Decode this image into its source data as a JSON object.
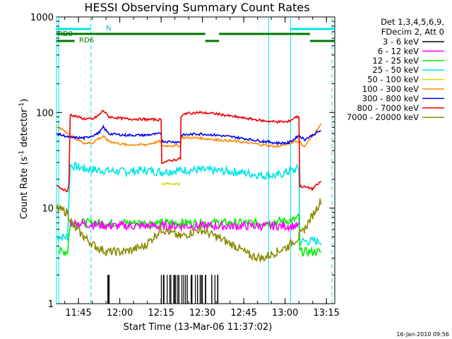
{
  "chart_data": {
    "type": "line",
    "title": "HESSI Observing Summary Count Rates",
    "xlabel": "Start Time (13-Mar-06 11:37:02)",
    "ylabel_main": "Count Rate (s",
    "ylabel_sup1": "-1",
    "ylabel_mid": " detector",
    "ylabel_sup2": "-1",
    "ylabel_end": ")",
    "y_scale": "log",
    "ylim": [
      1,
      1000
    ],
    "xlim": [
      "11:37:02",
      "13:18:00"
    ],
    "x_ticks": [
      "11:45",
      "12:00",
      "12:15",
      "12:30",
      "12:45",
      "13:00",
      "13:15"
    ],
    "y_ticks": [
      "1",
      "10",
      "100",
      "1000"
    ],
    "legend_header": [
      "Det 1,3,4,5,6,9,",
      "FDecim 2, Att 0"
    ],
    "legend_placement": "right",
    "timestamp": "16-Jan-2010 09:56",
    "annotations": {
      "rd0": "RD0",
      "rd6": "RD6",
      "n": "N"
    },
    "night_minutes": [
      [
        0,
        0.8
      ],
      [
        77,
        85
      ]
    ],
    "night_dash_minutes": [
      12.5,
      100
    ],
    "rd0_segments": [
      [
        0,
        12.5
      ],
      [
        85,
        101
      ]
    ],
    "rd0_flag_segments": [
      [
        0,
        54
      ],
      [
        59,
        92
      ]
    ],
    "rd6_segments": [
      [
        0,
        4
      ]
    ],
    "rd6_flag_segments": [
      [
        54,
        59
      ],
      [
        92,
        101
      ]
    ],
    "gap_minutes": [
      [
        0,
        4.5
      ],
      [
        52.5,
        56.5
      ],
      [
        88,
        90
      ]
    ],
    "series": [
      {
        "name": "3 - 6 keV",
        "color": "#000000",
        "values_note": "sporadic 1-2"
      },
      {
        "name": "6 - 12 keV",
        "color": "#ff00ff"
      },
      {
        "name": "12 - 25 keV",
        "color": "#00ee00"
      },
      {
        "name": "25 - 50 keV",
        "color": "#00e5e5"
      },
      {
        "name": "50 - 100 keV",
        "color": "#d8d800"
      },
      {
        "name": "100 - 300 keV",
        "color": "#ff8800"
      },
      {
        "name": "300 - 800 keV",
        "color": "#0000ee"
      },
      {
        "name": "800 - 7000 keV",
        "color": "#ee0000"
      },
      {
        "name": "7000 - 20000 keV",
        "color": "#8b8b00"
      }
    ],
    "curves": {
      "red": [
        [
          0,
          17
        ],
        [
          4,
          15
        ],
        [
          4.5,
          18
        ],
        [
          5,
          95
        ],
        [
          10,
          86
        ],
        [
          13,
          85
        ],
        [
          15,
          92
        ],
        [
          17,
          105
        ],
        [
          19,
          90
        ],
        [
          25,
          86
        ],
        [
          32,
          85
        ],
        [
          38,
          84
        ],
        [
          38.2,
          30
        ],
        [
          45,
          33
        ],
        [
          45.2,
          90
        ],
        [
          47,
          98
        ],
        [
          52,
          100
        ],
        [
          58,
          97
        ],
        [
          65,
          90
        ],
        [
          75,
          82
        ],
        [
          80,
          80
        ],
        [
          84,
          80
        ],
        [
          87,
          90
        ],
        [
          88,
          90
        ],
        [
          88.3,
          17
        ],
        [
          93,
          16
        ],
        [
          96,
          19
        ]
      ],
      "blue": [
        [
          0,
          60
        ],
        [
          4,
          56
        ],
        [
          5,
          55
        ],
        [
          10,
          54
        ],
        [
          15,
          60
        ],
        [
          17,
          70
        ],
        [
          19,
          60
        ],
        [
          25,
          58
        ],
        [
          32,
          58
        ],
        [
          38,
          60
        ],
        [
          38.2,
          50
        ],
        [
          45,
          49
        ],
        [
          45.2,
          58
        ],
        [
          52,
          60
        ],
        [
          58,
          58
        ],
        [
          65,
          55
        ],
        [
          75,
          50
        ],
        [
          80,
          48
        ],
        [
          84,
          48
        ],
        [
          86,
          52
        ],
        [
          88,
          58
        ],
        [
          90,
          52
        ],
        [
          96,
          65
        ]
      ],
      "orange": [
        [
          0,
          70
        ],
        [
          3,
          65
        ],
        [
          5,
          57
        ],
        [
          10,
          48
        ],
        [
          13,
          48
        ],
        [
          15,
          53
        ],
        [
          17,
          56
        ],
        [
          19,
          50
        ],
        [
          25,
          46
        ],
        [
          32,
          46
        ],
        [
          38,
          50
        ],
        [
          38.2,
          45
        ],
        [
          45,
          45
        ],
        [
          45.2,
          55
        ],
        [
          52,
          54
        ],
        [
          58,
          52
        ],
        [
          65,
          50
        ],
        [
          75,
          46
        ],
        [
          80,
          44
        ],
        [
          84,
          47
        ],
        [
          86,
          50
        ],
        [
          88,
          50
        ],
        [
          90,
          44
        ],
        [
          96,
          75
        ]
      ],
      "cyan": [
        [
          0,
          5
        ],
        [
          4,
          5
        ],
        [
          5,
          28
        ],
        [
          10,
          26
        ],
        [
          15,
          25
        ],
        [
          25,
          24
        ],
        [
          32,
          25
        ],
        [
          38,
          24
        ],
        [
          38.2,
          24
        ],
        [
          45,
          25
        ],
        [
          52,
          25
        ],
        [
          65,
          24
        ],
        [
          75,
          22
        ],
        [
          80,
          22
        ],
        [
          84,
          24
        ],
        [
          88,
          26
        ],
        [
          88.3,
          4.5
        ],
        [
          96,
          4.5
        ]
      ],
      "yellow": [
        [
          38.2,
          18
        ],
        [
          44.8,
          18
        ]
      ],
      "green": [
        [
          0.8,
          3.5
        ],
        [
          4,
          3.5
        ],
        [
          5,
          7
        ],
        [
          20,
          7
        ],
        [
          38,
          7
        ],
        [
          45,
          7
        ],
        [
          60,
          7
        ],
        [
          75,
          7
        ],
        [
          86,
          7.5
        ],
        [
          88,
          8
        ],
        [
          88.3,
          3.5
        ],
        [
          96,
          3.5
        ]
      ],
      "magenta": [
        [
          5,
          7
        ],
        [
          20,
          6.5
        ],
        [
          38,
          6.5
        ],
        [
          52,
          6.5
        ],
        [
          75,
          6.5
        ],
        [
          88,
          6.5
        ]
      ],
      "olive": [
        [
          0,
          10
        ],
        [
          4,
          9
        ],
        [
          6,
          6.5
        ],
        [
          10,
          5
        ],
        [
          14,
          4
        ],
        [
          18,
          3.5
        ],
        [
          25,
          3.5
        ],
        [
          32,
          4
        ],
        [
          38,
          6
        ],
        [
          38.2,
          6
        ],
        [
          45,
          5
        ],
        [
          52,
          6
        ],
        [
          58,
          5
        ],
        [
          65,
          4
        ],
        [
          70,
          3.2
        ],
        [
          75,
          3
        ],
        [
          80,
          3.5
        ],
        [
          84,
          4
        ],
        [
          88,
          5
        ],
        [
          90,
          6
        ],
        [
          96,
          12
        ]
      ],
      "black_spikes": [
        [
          18,
          2
        ],
        [
          38,
          2
        ],
        [
          40,
          2
        ],
        [
          42,
          2
        ],
        [
          44,
          2
        ],
        [
          46,
          2
        ],
        [
          48,
          2
        ],
        [
          50,
          2
        ],
        [
          52,
          2
        ],
        [
          54,
          2
        ],
        [
          56,
          2
        ],
        [
          58,
          2
        ]
      ]
    }
  }
}
